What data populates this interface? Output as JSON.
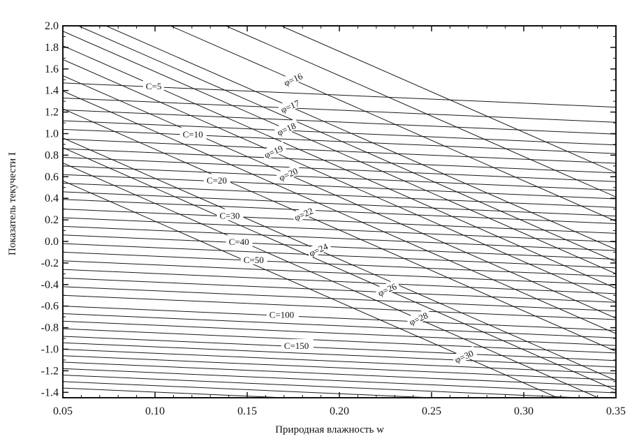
{
  "chart_data": {
    "type": "line",
    "title": "",
    "xlabel": "Природная влажность w",
    "ylabel": "Показатель текучести I",
    "xlim": [
      0.05,
      0.35
    ],
    "ylim": [
      -1.45,
      2.0
    ],
    "x_ticks": [
      {
        "value": 0.05,
        "label": "0.05"
      },
      {
        "value": 0.1,
        "label": "0.10"
      },
      {
        "value": 0.15,
        "label": "0.15"
      },
      {
        "value": 0.2,
        "label": "0.20"
      },
      {
        "value": 0.25,
        "label": "0.25"
      },
      {
        "value": 0.3,
        "label": "0.30"
      },
      {
        "value": 0.35,
        "label": "0.35"
      }
    ],
    "y_ticks": [
      {
        "value": 2.0,
        "label": "2.0"
      },
      {
        "value": 1.8,
        "label": "1.8"
      },
      {
        "value": 1.6,
        "label": "1.6"
      },
      {
        "value": 1.4,
        "label": "1.4"
      },
      {
        "value": 1.2,
        "label": "1.2"
      },
      {
        "value": 1.0,
        "label": "1.0"
      },
      {
        "value": 0.8,
        "label": "0.8"
      },
      {
        "value": 0.6,
        "label": "0.6"
      },
      {
        "value": 0.4,
        "label": "0.4"
      },
      {
        "value": 0.2,
        "label": "0.2"
      },
      {
        "value": 0.0,
        "label": "0.0"
      },
      {
        "value": -0.2,
        "label": "-0.2"
      },
      {
        "value": -0.4,
        "label": "-0.4"
      },
      {
        "value": -0.6,
        "label": "-0.6"
      },
      {
        "value": -0.8,
        "label": "-0.8"
      },
      {
        "value": -1.0,
        "label": "-1.0"
      },
      {
        "value": -1.2,
        "label": "-1.2"
      },
      {
        "value": -1.4,
        "label": "-1.4"
      }
    ],
    "grid": false,
    "line_color": "#1a1a1a",
    "cohesion_family": {
      "label_prefix": "C=",
      "slope": 0.75,
      "lines": [
        {
          "c": 5,
          "intercept": 1.47
        },
        {
          "intercept": 1.33
        },
        {
          "intercept": 1.22
        },
        {
          "intercept": 1.12
        },
        {
          "c": 10,
          "intercept": 1.04
        },
        {
          "intercept": 0.95
        },
        {
          "intercept": 0.86
        },
        {
          "intercept": 0.78
        },
        {
          "intercept": 0.7
        },
        {
          "c": 20,
          "intercept": 0.62
        },
        {
          "intercept": 0.54
        },
        {
          "intercept": 0.46
        },
        {
          "intercept": 0.39
        },
        {
          "c": 30,
          "intercept": 0.3
        },
        {
          "intercept": 0.22
        },
        {
          "intercept": 0.14
        },
        {
          "c": 40,
          "intercept": 0.06
        },
        {
          "intercept": -0.02
        },
        {
          "c": 50,
          "intercept": -0.1
        },
        {
          "intercept": -0.18
        },
        {
          "intercept": -0.26
        },
        {
          "intercept": -0.34
        },
        {
          "intercept": -0.42
        },
        {
          "intercept": -0.5
        },
        {
          "c": 100,
          "intercept": -0.6
        },
        {
          "intercept": -0.67
        },
        {
          "intercept": -0.74
        },
        {
          "intercept": -0.81
        },
        {
          "c": 150,
          "intercept": -0.88
        },
        {
          "intercept": -0.94
        },
        {
          "intercept": -1.0
        },
        {
          "intercept": -1.06
        },
        {
          "intercept": -1.12
        },
        {
          "intercept": -1.18
        },
        {
          "intercept": -1.24
        },
        {
          "intercept": -1.3
        },
        {
          "intercept": -1.36
        }
      ],
      "label_positions": [
        {
          "c": 5,
          "x": 0.095
        },
        {
          "c": 10,
          "x": 0.115
        },
        {
          "c": 20,
          "x": 0.128
        },
        {
          "c": 30,
          "x": 0.135
        },
        {
          "c": 40,
          "x": 0.14
        },
        {
          "c": 50,
          "x": 0.148
        },
        {
          "c": 100,
          "x": 0.162
        },
        {
          "c": 150,
          "x": 0.17
        }
      ]
    },
    "friction_family": {
      "label_prefix": "φ=",
      "slope": -7.5,
      "lines": [
        {
          "phi": 30,
          "x_at_i0": 0.125
        },
        {
          "phi": 28,
          "x_at_i0": 0.147
        },
        {
          "phi": 26,
          "x_at_i0": 0.166
        },
        {
          "phi": 24,
          "x_at_i0": 0.178
        },
        {
          "phi": 22,
          "x_at_i0": 0.214
        },
        {
          "phi": 20,
          "x_at_i0": 0.255
        },
        {
          "phi": 19,
          "x_at_i0": 0.275
        },
        {
          "phi": 18,
          "x_at_i0": 0.31
        },
        {
          "phi": 17,
          "x_at_i0": 0.34
        },
        {
          "phi": 16,
          "x_at_i0": 0.375
        },
        {
          "x_at_i0": 0.236
        },
        {
          "x_at_i0": 0.292
        },
        {
          "x_at_i0": 0.325
        },
        {
          "x_at_i0": 0.405
        },
        {
          "x_at_i0": 0.435
        }
      ],
      "label_positions": [
        {
          "phi": 30,
          "y": -1.07
        },
        {
          "phi": 28,
          "y": -0.72
        },
        {
          "phi": 26,
          "y": -0.45
        },
        {
          "phi": 24,
          "y": -0.08
        },
        {
          "phi": 22,
          "y": 0.25
        },
        {
          "phi": 20,
          "y": 0.62
        },
        {
          "phi": 19,
          "y": 0.83
        },
        {
          "phi": 18,
          "y": 1.04
        },
        {
          "phi": 17,
          "y": 1.25
        },
        {
          "phi": 16,
          "y": 1.5
        }
      ]
    }
  }
}
